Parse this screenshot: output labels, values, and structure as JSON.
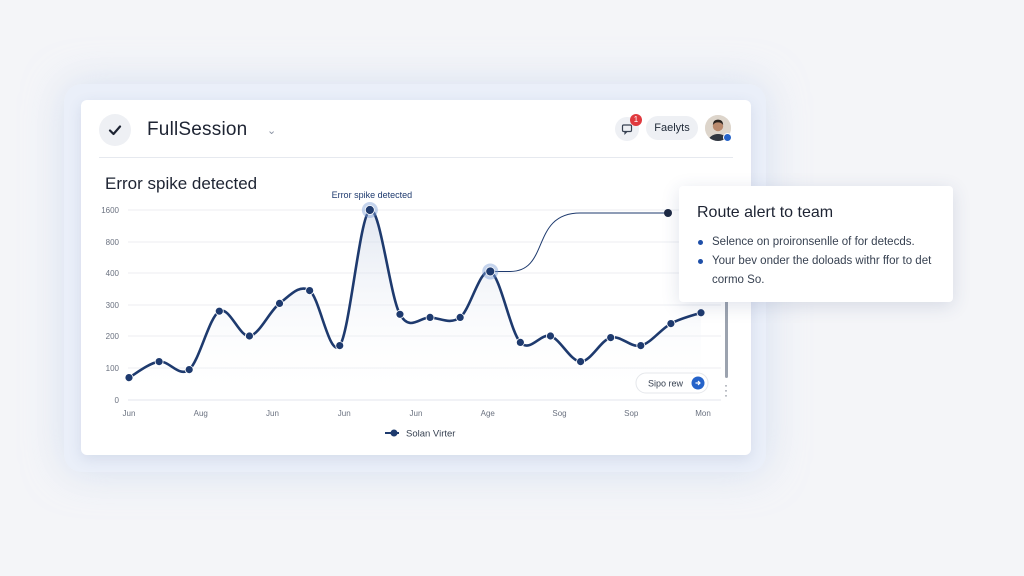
{
  "header": {
    "app_title": "FullSession",
    "report_button": "Faelyts",
    "notification_count": "1"
  },
  "chart": {
    "title": "Error spike detected",
    "peak_annotation": "Error spike detected",
    "action_button": "Sipo rew"
  },
  "popup": {
    "title": "Route alert to team",
    "items": [
      "Selence on proironsenlle of for detecds.",
      "Your bev onder the doloads withr ffor to det cormo So."
    ]
  },
  "colors": {
    "series": "#1e3a6e",
    "accent": "#1e4fa8",
    "badge": "#e0393e"
  },
  "chart_data": {
    "type": "line",
    "title": "Error spike detected",
    "xlabel": "",
    "ylabel": "",
    "ylim": [
      0,
      1600
    ],
    "y_ticks": [
      "0",
      "100",
      "200",
      "300",
      "400",
      "800",
      "1600"
    ],
    "x_tick_labels": [
      "Jun",
      "Aug",
      "Jun",
      "Jun",
      "Jun",
      "Age",
      "Sog",
      "Sop",
      "Mon"
    ],
    "grid": true,
    "legend": "bottom",
    "series": [
      {
        "name": "Solan Virter",
        "values": [
          70,
          120,
          95,
          280,
          200,
          305,
          345,
          170,
          1600,
          270,
          260,
          260,
          420,
          180,
          200,
          120,
          195,
          170,
          240,
          275
        ]
      }
    ],
    "highlighted_points": [
      8,
      12
    ]
  }
}
